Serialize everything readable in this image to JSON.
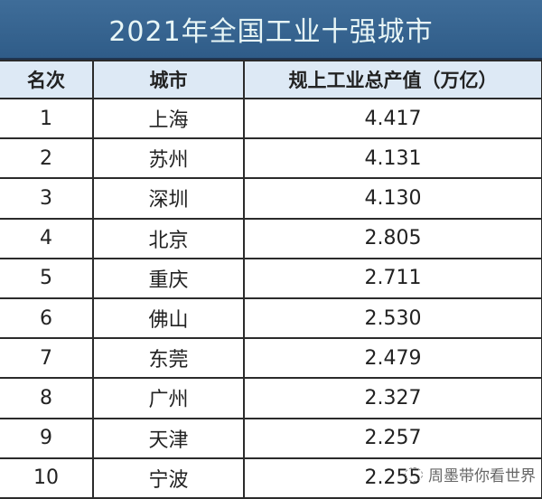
{
  "title": "2021年全国工业十强城市",
  "headers": [
    "名次",
    "城市",
    "规上工业总产值（万亿）"
  ],
  "rows": [
    {
      "rank": "1",
      "city": "上海",
      "value": "4.417"
    },
    {
      "rank": "2",
      "city": "苏州",
      "value": "4.131"
    },
    {
      "rank": "3",
      "city": "深圳",
      "value": "4.130"
    },
    {
      "rank": "4",
      "city": "北京",
      "value": "2.805"
    },
    {
      "rank": "5",
      "city": "重庆",
      "value": "2.711"
    },
    {
      "rank": "6",
      "city": "佛山",
      "value": "2.530"
    },
    {
      "rank": "7",
      "city": "东莞",
      "value": "2.479"
    },
    {
      "rank": "8",
      "city": "广州",
      "value": "2.327"
    },
    {
      "rank": "9",
      "city": "天津",
      "value": "2.257"
    },
    {
      "rank": "10",
      "city": "宁波",
      "value": "2.255"
    }
  ],
  "watermark": "周墨带你看世界",
  "colors": {
    "title_bg": "#3a6894",
    "header_bg": "#dde9f5",
    "title_text": "#e8f6f6"
  }
}
